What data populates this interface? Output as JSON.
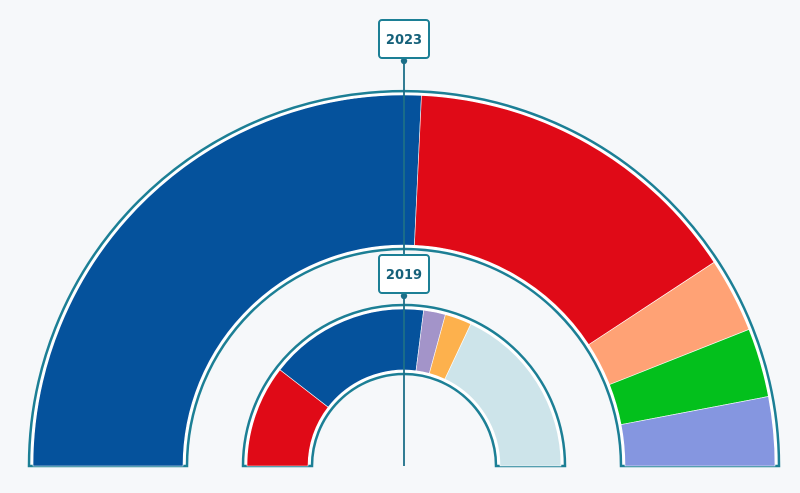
{
  "chart_data": {
    "type": "pie",
    "subtype": "semicircle-donut-comparison",
    "colors": {
      "outline": "#1c7f95",
      "marker_line": "#1c6f88",
      "label_text": "#16617a",
      "background": "#f6f8fa"
    },
    "rings": [
      {
        "label": "2023",
        "slices": [
          {
            "value": 51.5,
            "color": "#05529c"
          },
          {
            "value": 30.0,
            "color": "#e00a17"
          },
          {
            "value": 6.5,
            "color": "#ffa275"
          },
          {
            "value": 6.0,
            "color": "#03c01c"
          },
          {
            "value": 6.0,
            "color": "#8596e0"
          }
        ]
      },
      {
        "label": "2019",
        "slices": [
          {
            "value": 21.0,
            "color": "#e00a17"
          },
          {
            "value": 33.0,
            "color": "#05529c"
          },
          {
            "value": 4.5,
            "color": "#a394c9"
          },
          {
            "value": 5.5,
            "color": "#fdb14d"
          },
          {
            "value": 36.0,
            "color": "#cde4ea"
          }
        ]
      }
    ]
  }
}
